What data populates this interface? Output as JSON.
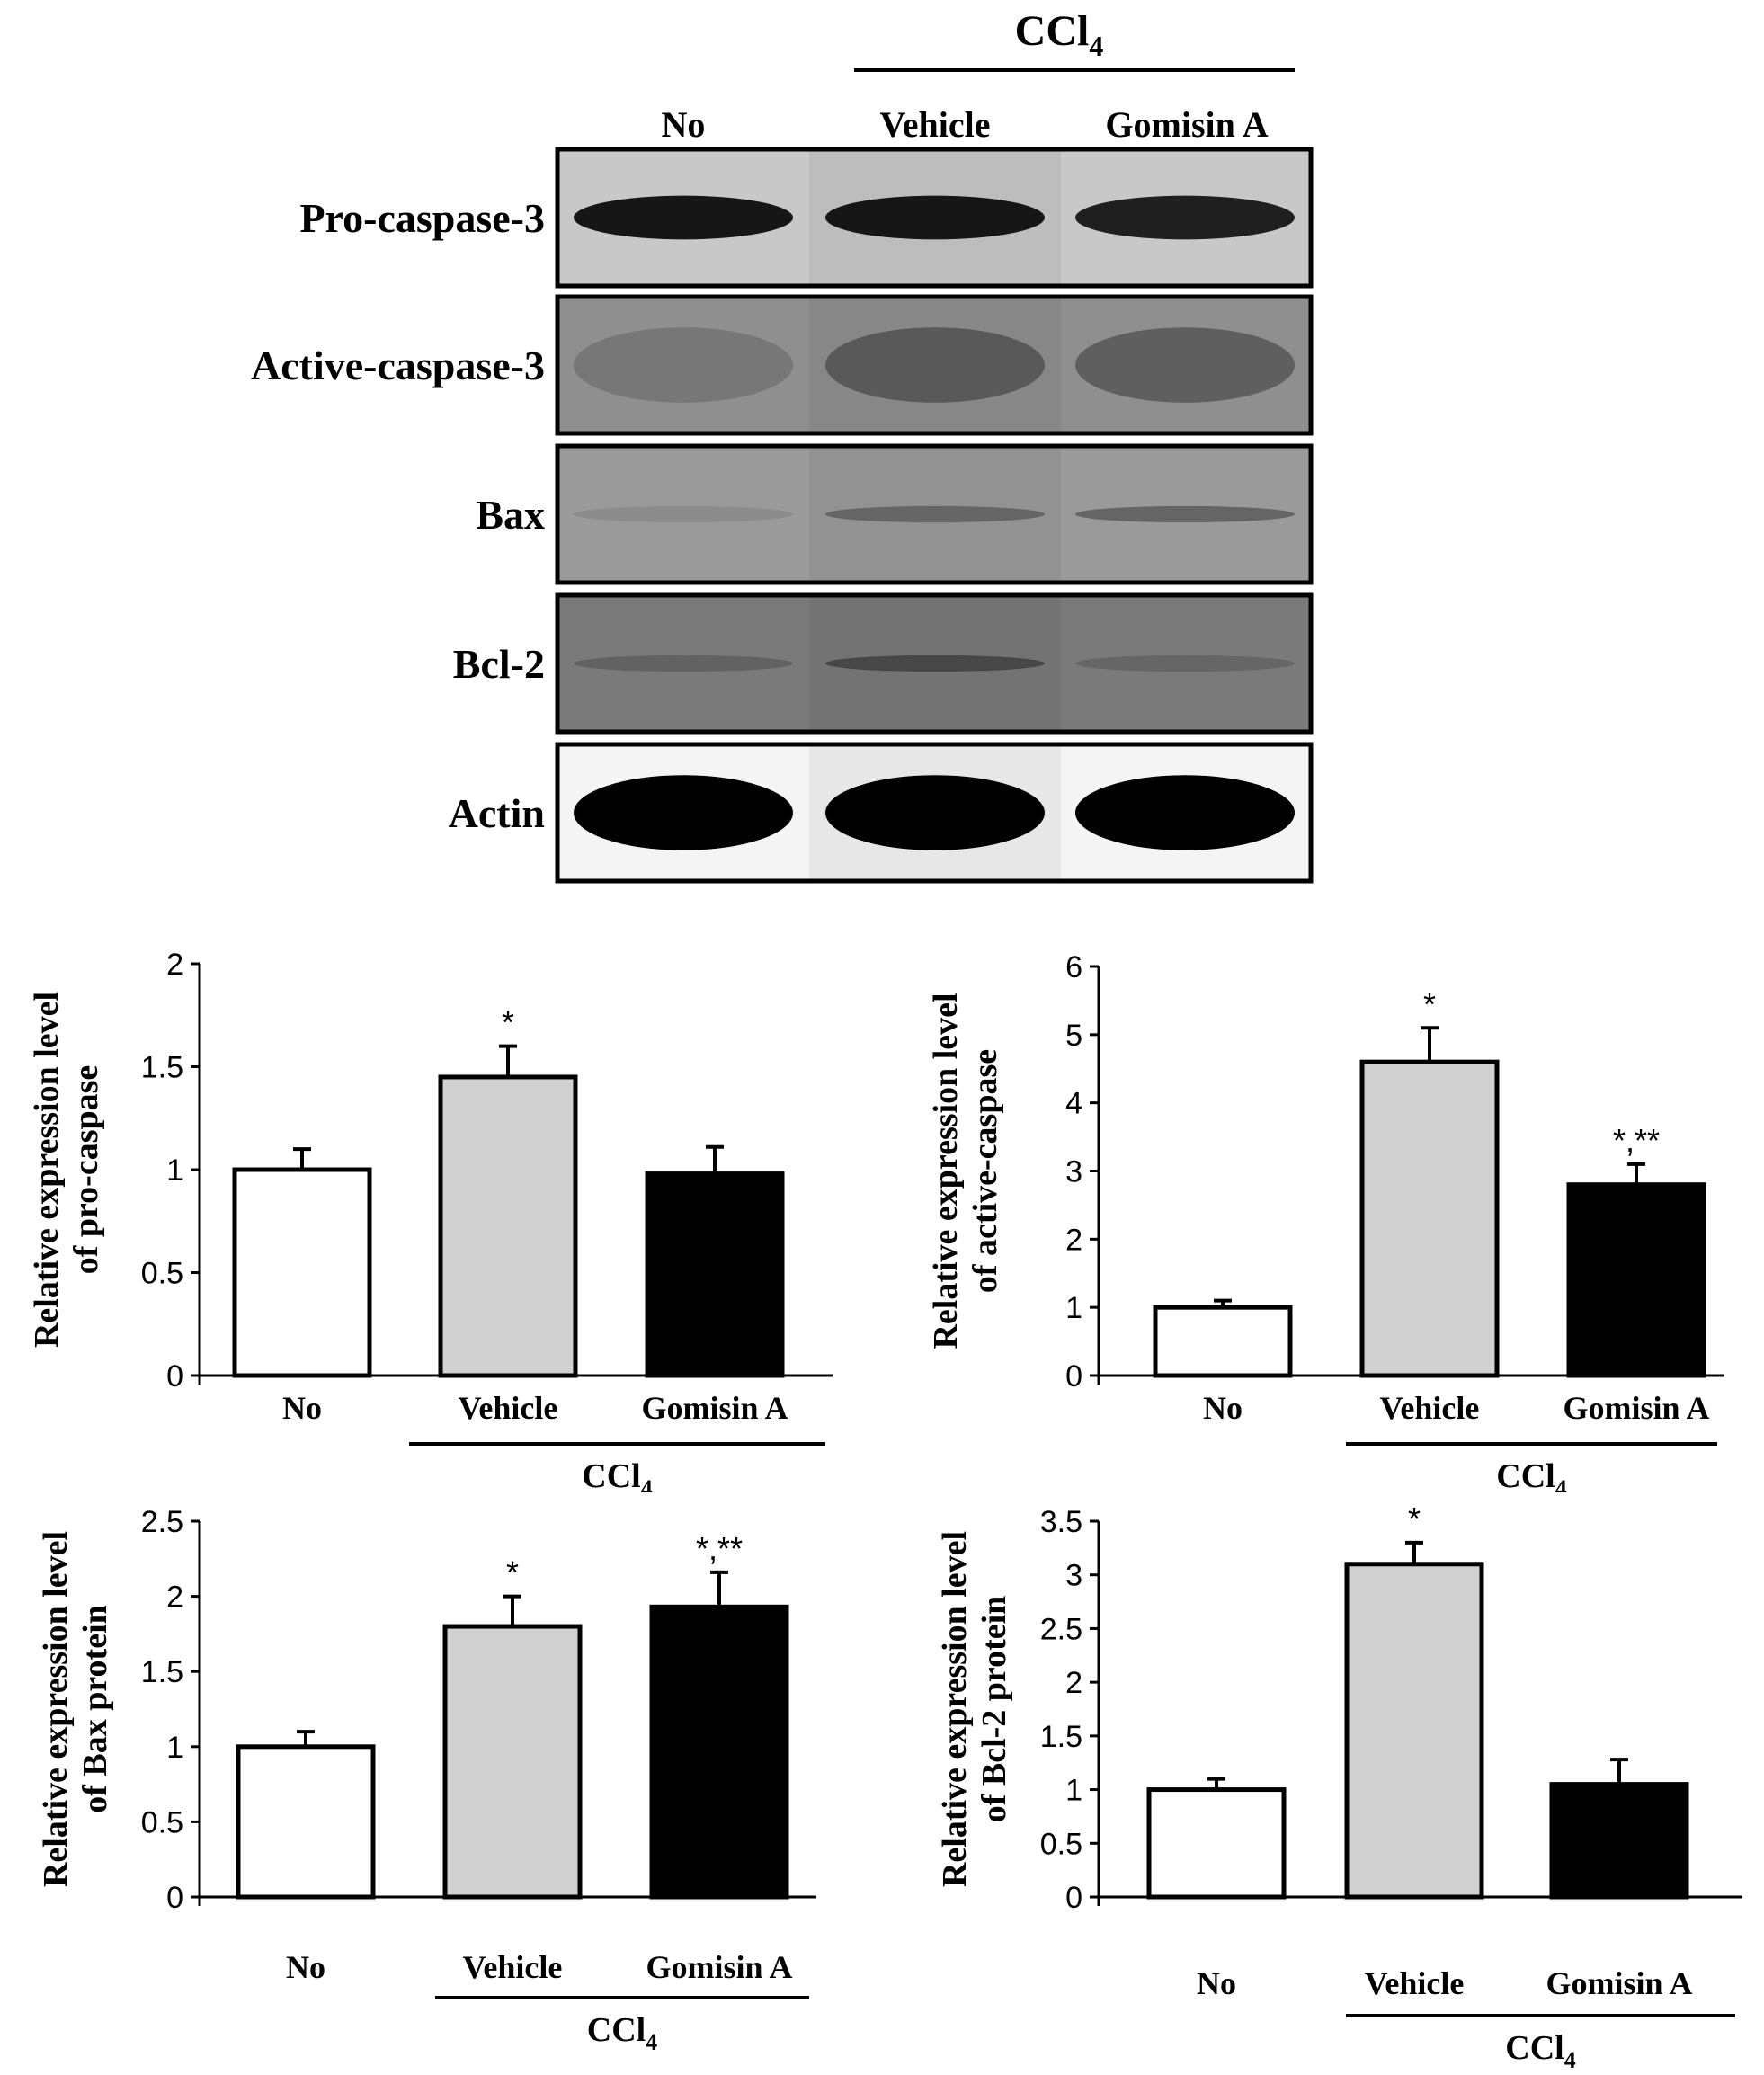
{
  "blot": {
    "treatment_group": "CCl",
    "treatment_subscript": "4",
    "lanes": [
      "No",
      "Vehicle",
      "Gomisin A"
    ],
    "rows": [
      {
        "label": "Pro-caspase-3",
        "background": "#c8c8c8",
        "band": "#161616",
        "intensity": [
          1.0,
          1.0,
          0.95
        ],
        "band_height": 0.32
      },
      {
        "label": "Active-caspase-3",
        "background": "#8f8f8f",
        "band": "#4a4a4a",
        "intensity": [
          0.35,
          0.75,
          0.7
        ],
        "band_height": 0.55
      },
      {
        "label": "Bax",
        "background": "#9a9a9a",
        "band": "#3a3a3a",
        "intensity": [
          0.15,
          0.5,
          0.55
        ],
        "band_height": 0.12
      },
      {
        "label": "Bcl-2",
        "background": "#7a7a7a",
        "band": "#2a2a2a",
        "intensity": [
          0.3,
          0.6,
          0.25
        ],
        "band_height": 0.12
      },
      {
        "label": "Actin",
        "background": "#f4f4f4",
        "band": "#000000",
        "intensity": [
          1.0,
          1.0,
          1.0
        ],
        "band_height": 0.55
      }
    ]
  },
  "chart_data": [
    {
      "type": "bar",
      "ylabel_line1": "Relative expression level",
      "ylabel_line2": "of pro-caspase",
      "categories": [
        "No",
        "Vehicle",
        "Gomisin A"
      ],
      "values": [
        1.0,
        1.45,
        0.98
      ],
      "errors": [
        0.1,
        0.15,
        0.13
      ],
      "annotations": [
        "",
        "*",
        ""
      ],
      "ylim": [
        0,
        2
      ],
      "ticks": [
        "0",
        "0.5",
        "1",
        "1.5",
        "2"
      ],
      "tick_values": [
        0,
        0.5,
        1,
        1.5,
        2
      ],
      "group_label": "CCl",
      "group_subscript": "4",
      "bar_colors": [
        "#ffffff",
        "#d0d0d0",
        "#000000"
      ]
    },
    {
      "type": "bar",
      "ylabel_line1": "Relative expression level",
      "ylabel_line2": "of active-caspase",
      "categories": [
        "No",
        "Vehicle",
        "Gomisin A"
      ],
      "values": [
        1.0,
        4.6,
        2.8
      ],
      "errors": [
        0.1,
        0.5,
        0.3
      ],
      "annotations": [
        "",
        "*",
        "*,**"
      ],
      "ylim": [
        0,
        6
      ],
      "ticks": [
        "0",
        "1",
        "2",
        "3",
        "4",
        "5",
        "6"
      ],
      "tick_values": [
        0,
        1,
        2,
        3,
        4,
        5,
        6
      ],
      "group_label": "CCl",
      "group_subscript": "4",
      "bar_colors": [
        "#ffffff",
        "#d0d0d0",
        "#000000"
      ]
    },
    {
      "type": "bar",
      "ylabel_line1": "Relative expression level",
      "ylabel_line2": "of Bax protein",
      "categories": [
        "No",
        "Vehicle",
        "Gomisin A"
      ],
      "values": [
        1.0,
        1.8,
        1.93
      ],
      "errors": [
        0.1,
        0.2,
        0.23
      ],
      "annotations": [
        "",
        "*",
        "*,**"
      ],
      "ylim": [
        0,
        2.5
      ],
      "ticks": [
        "0",
        "0.5",
        "1",
        "1.5",
        "2",
        "2.5"
      ],
      "tick_values": [
        0,
        0.5,
        1,
        1.5,
        2,
        2.5
      ],
      "group_label": "CCl",
      "group_subscript": "4",
      "bar_colors": [
        "#ffffff",
        "#d0d0d0",
        "#000000"
      ]
    },
    {
      "type": "bar",
      "ylabel_line1": "Relative expression level",
      "ylabel_line2": "of Bcl-2 protein",
      "categories": [
        "No",
        "Vehicle",
        "Gomisin A"
      ],
      "values": [
        1.0,
        3.1,
        1.05
      ],
      "errors": [
        0.1,
        0.2,
        0.23
      ],
      "annotations": [
        "",
        "*",
        ""
      ],
      "ylim": [
        0,
        3.5
      ],
      "ticks": [
        "0",
        "0.5",
        "1",
        "1.5",
        "2",
        "2.5",
        "3",
        "3.5"
      ],
      "tick_values": [
        0,
        0.5,
        1,
        1.5,
        2,
        2.5,
        3,
        3.5
      ],
      "group_label": "CCl",
      "group_subscript": "4",
      "bar_colors": [
        "#ffffff",
        "#d0d0d0",
        "#000000"
      ]
    }
  ]
}
